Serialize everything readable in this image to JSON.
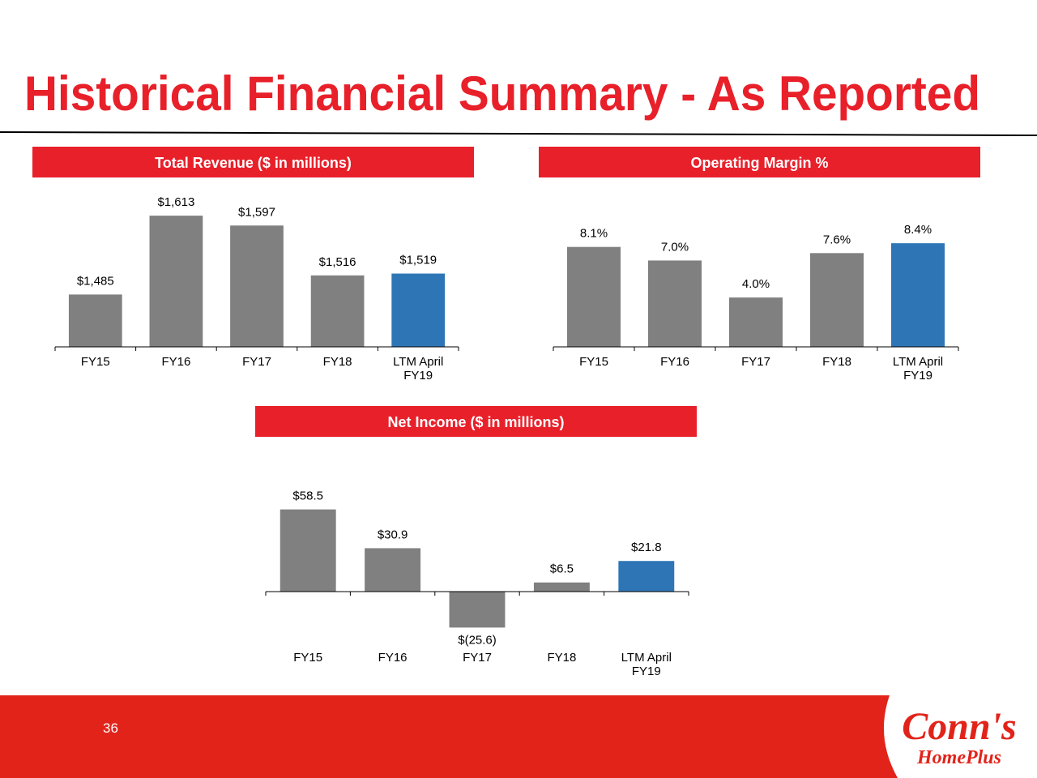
{
  "title": "Historical Financial Summary - As Reported",
  "page_number": "36",
  "logo": {
    "brand": "Conn's",
    "sub": "HomePlus"
  },
  "chart_data": [
    {
      "type": "bar",
      "title": "Total Revenue ($ in millions)",
      "categories": [
        "FY15",
        "FY16",
        "FY17",
        "FY18",
        "LTM April FY19"
      ],
      "values": [
        1485,
        1613,
        1597,
        1516,
        1519
      ],
      "value_labels": [
        "$1,485",
        "$1,613",
        "$1,597",
        "$1,516",
        "$1,519"
      ],
      "colors": [
        "#808080",
        "#808080",
        "#808080",
        "#808080",
        "#2e75b6"
      ],
      "ylim": [
        1400,
        1650
      ]
    },
    {
      "type": "bar",
      "title": "Operating Margin %",
      "categories": [
        "FY15",
        "FY16",
        "FY17",
        "FY18",
        "LTM April FY19"
      ],
      "values": [
        8.1,
        7.0,
        4.0,
        7.6,
        8.4
      ],
      "value_labels": [
        "8.1%",
        "7.0%",
        "4.0%",
        "7.6%",
        "8.4%"
      ],
      "colors": [
        "#808080",
        "#808080",
        "#808080",
        "#808080",
        "#2e75b6"
      ],
      "ylim": [
        0,
        9
      ]
    },
    {
      "type": "bar",
      "title": "Net Income  ($ in millions)",
      "categories": [
        "FY15",
        "FY16",
        "FY17",
        "FY18",
        "LTM April FY19"
      ],
      "values": [
        58.5,
        30.9,
        -25.6,
        6.5,
        21.8
      ],
      "value_labels": [
        "$58.5",
        "$30.9",
        "$(25.6)",
        "$6.5",
        "$21.8"
      ],
      "colors": [
        "#808080",
        "#808080",
        "#808080",
        "#808080",
        "#2e75b6"
      ],
      "ylim": [
        -30,
        60
      ]
    }
  ]
}
